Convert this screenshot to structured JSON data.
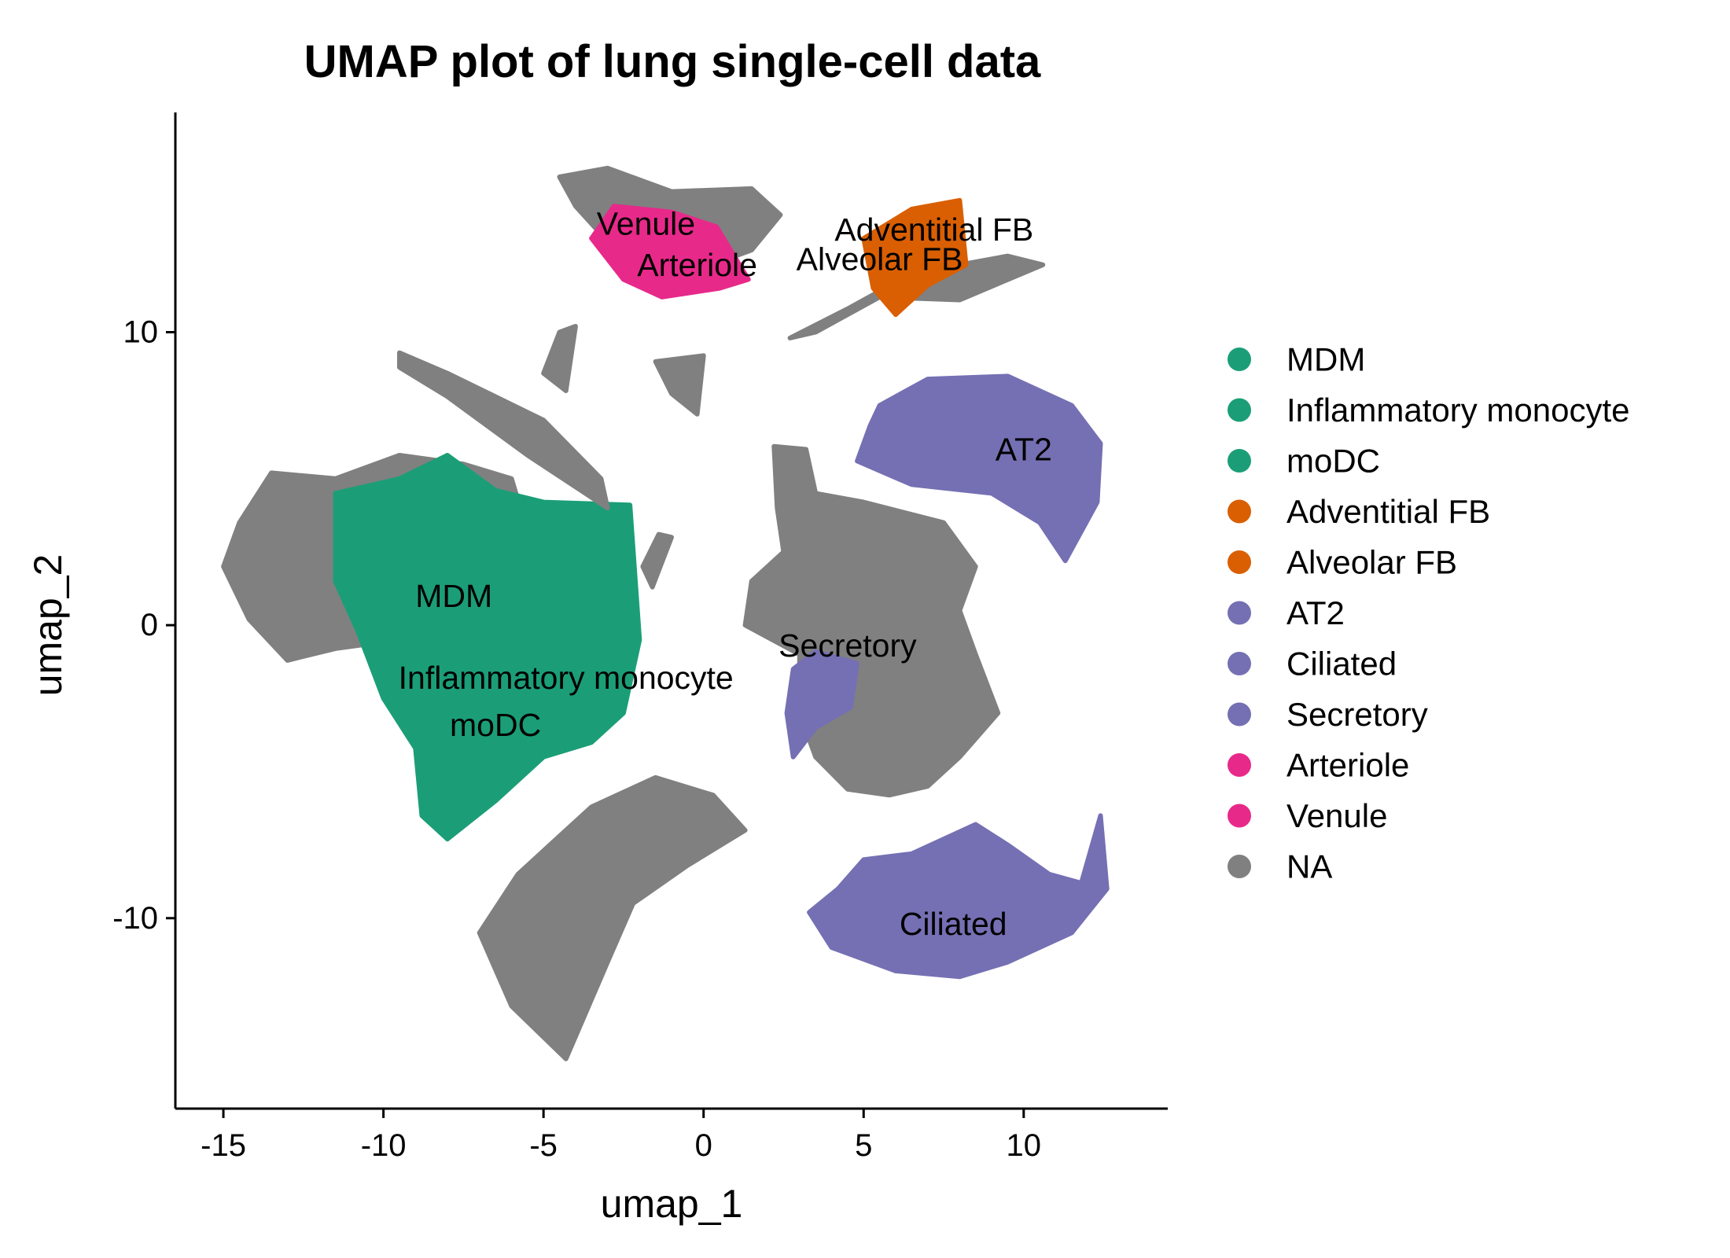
{
  "chart_data": {
    "type": "scatter",
    "title": "UMAP plot of lung single-cell data",
    "xlabel": "umap_1",
    "ylabel": "umap_2",
    "xlim": [
      -16.5,
      14.5
    ],
    "ylim": [
      -16.5,
      17.5
    ],
    "xticks": [
      -15,
      -10,
      -5,
      0,
      5,
      10
    ],
    "xtick_labels": [
      "-15",
      "-10",
      "-5",
      "0",
      "5",
      "10"
    ],
    "yticks": [
      -10,
      0,
      10
    ],
    "ytick_labels": [
      "-10",
      "0",
      "10"
    ],
    "grid": false,
    "legend_position": "right",
    "legend": [
      {
        "label": "MDM",
        "color": "#1B9E77"
      },
      {
        "label": "Inflammatory monocyte",
        "color": "#1B9E77"
      },
      {
        "label": "moDC",
        "color": "#1B9E77"
      },
      {
        "label": "Adventitial FB",
        "color": "#D95F02"
      },
      {
        "label": "Alveolar FB",
        "color": "#D95F02"
      },
      {
        "label": "AT2",
        "color": "#7570B3"
      },
      {
        "label": "Ciliated",
        "color": "#7570B3"
      },
      {
        "label": "Secretory",
        "color": "#7570B3"
      },
      {
        "label": "Arteriole",
        "color": "#E7298A"
      },
      {
        "label": "Venule",
        "color": "#E7298A"
      },
      {
        "label": "NA",
        "color": "#808080"
      }
    ],
    "cluster_labels": [
      {
        "label": "Venule",
        "x": -1.8,
        "y": 13.7
      },
      {
        "label": "Arteriole",
        "x": -0.2,
        "y": 12.3
      },
      {
        "label": "Adventitial FB",
        "x": 7.2,
        "y": 13.5
      },
      {
        "label": "Alveolar FB",
        "x": 5.5,
        "y": 12.5
      },
      {
        "label": "AT2",
        "x": 10.0,
        "y": 6.0
      },
      {
        "label": "MDM",
        "x": -7.8,
        "y": 1.0
      },
      {
        "label": "Secretory",
        "x": 4.5,
        "y": -0.7
      },
      {
        "label": "Inflammatory monocyte",
        "x": -4.3,
        "y": -1.8
      },
      {
        "label": "moDC",
        "x": -6.5,
        "y": -3.4
      },
      {
        "label": "Ciliated",
        "x": 7.8,
        "y": -10.2
      }
    ],
    "regions": [
      {
        "group": "NA",
        "color": "#808080",
        "points": [
          [
            -14.5,
            3.5
          ],
          [
            -13.5,
            5.2
          ],
          [
            -11.5,
            5.0
          ],
          [
            -9.5,
            5.8
          ],
          [
            -7.5,
            5.5
          ],
          [
            -6.0,
            5.0
          ],
          [
            -5.5,
            3.2
          ],
          [
            -7.5,
            1.0
          ],
          [
            -9.5,
            -0.5
          ],
          [
            -11.5,
            -0.8
          ],
          [
            -13.0,
            -1.2
          ],
          [
            -14.2,
            0.2
          ],
          [
            -15.0,
            2.0
          ]
        ]
      },
      {
        "group": "MDM",
        "color": "#1B9E77",
        "points": [
          [
            -11.5,
            4.5
          ],
          [
            -9.5,
            5.0
          ],
          [
            -8.0,
            5.8
          ],
          [
            -6.5,
            4.6
          ],
          [
            -5.0,
            4.2
          ],
          [
            -2.3,
            4.1
          ],
          [
            -2.0,
            -0.5
          ],
          [
            -2.5,
            -3.0
          ],
          [
            -3.5,
            -4.0
          ],
          [
            -5.0,
            -4.5
          ],
          [
            -6.5,
            -6.0
          ],
          [
            -8.0,
            -7.3
          ],
          [
            -8.8,
            -6.5
          ],
          [
            -9.0,
            -4.2
          ],
          [
            -10.0,
            -2.5
          ],
          [
            -10.8,
            -0.2
          ],
          [
            -11.5,
            1.5
          ]
        ]
      },
      {
        "group": "NA",
        "color": "#808080",
        "points": [
          [
            -9.5,
            9.3
          ],
          [
            -8.0,
            8.6
          ],
          [
            -5.0,
            7.0
          ],
          [
            -3.2,
            5.0
          ],
          [
            -3.0,
            4.0
          ],
          [
            -5.5,
            5.8
          ],
          [
            -8.0,
            7.8
          ],
          [
            -9.5,
            8.8
          ]
        ]
      },
      {
        "group": "NA",
        "color": "#808080",
        "points": [
          [
            -4.8,
            -7.5
          ],
          [
            -3.5,
            -6.2
          ],
          [
            -1.5,
            -5.2
          ],
          [
            0.3,
            -5.8
          ],
          [
            1.3,
            -7.0
          ],
          [
            -0.5,
            -8.2
          ],
          [
            -2.2,
            -9.5
          ],
          [
            -3.0,
            -11.5
          ],
          [
            -4.3,
            -14.8
          ],
          [
            -6.0,
            -13.0
          ],
          [
            -7.0,
            -10.5
          ],
          [
            -5.8,
            -8.5
          ]
        ]
      },
      {
        "group": "NA",
        "color": "#808080",
        "points": [
          [
            -4.5,
            10.0
          ],
          [
            -4.0,
            10.2
          ],
          [
            -4.3,
            8.0
          ],
          [
            -5.0,
            8.6
          ]
        ]
      },
      {
        "group": "NA",
        "color": "#808080",
        "points": [
          [
            -1.5,
            9.0
          ],
          [
            0.0,
            9.2
          ],
          [
            -0.2,
            7.2
          ],
          [
            -1.0,
            7.9
          ]
        ]
      },
      {
        "group": "NA",
        "color": "#808080",
        "points": [
          [
            -1.4,
            3.1
          ],
          [
            -1.0,
            3.0
          ],
          [
            -1.6,
            1.3
          ],
          [
            -1.9,
            2.0
          ]
        ]
      },
      {
        "group": "NA",
        "color": "#808080",
        "points": [
          [
            -4.5,
            15.3
          ],
          [
            -3.0,
            15.6
          ],
          [
            -1.0,
            14.8
          ],
          [
            1.5,
            14.9
          ],
          [
            2.4,
            14.0
          ],
          [
            1.5,
            12.8
          ],
          [
            -0.5,
            12.0
          ],
          [
            -2.5,
            12.5
          ],
          [
            -4.0,
            14.3
          ]
        ]
      },
      {
        "group": "Venule",
        "color": "#E7298A",
        "points": [
          [
            -2.8,
            14.3
          ],
          [
            -1.0,
            14.1
          ],
          [
            0.4,
            13.6
          ],
          [
            1.4,
            11.8
          ],
          [
            0.5,
            11.5
          ],
          [
            -1.3,
            11.2
          ],
          [
            -2.5,
            11.8
          ],
          [
            -3.5,
            13.2
          ]
        ]
      },
      {
        "group": "NA",
        "color": "#808080",
        "points": [
          [
            2.7,
            9.8
          ],
          [
            4.5,
            10.8
          ],
          [
            6.5,
            12.0
          ],
          [
            9.5,
            12.6
          ],
          [
            10.6,
            12.3
          ],
          [
            8.0,
            11.1
          ],
          [
            5.5,
            11.2
          ],
          [
            3.5,
            10.0
          ]
        ]
      },
      {
        "group": "Adventitial FB",
        "color": "#D95F02",
        "points": [
          [
            5.0,
            13.2
          ],
          [
            6.5,
            14.2
          ],
          [
            8.0,
            14.5
          ],
          [
            8.2,
            12.3
          ],
          [
            7.0,
            11.6
          ],
          [
            6.0,
            10.6
          ],
          [
            5.3,
            11.5
          ]
        ]
      },
      {
        "group": "AT2",
        "color": "#7570B3",
        "points": [
          [
            5.5,
            7.5
          ],
          [
            7.0,
            8.4
          ],
          [
            9.5,
            8.5
          ],
          [
            11.5,
            7.5
          ],
          [
            12.4,
            6.2
          ],
          [
            12.3,
            4.2
          ],
          [
            11.3,
            2.2
          ],
          [
            10.5,
            3.5
          ],
          [
            9.0,
            4.5
          ],
          [
            6.5,
            4.8
          ],
          [
            4.8,
            5.6
          ],
          [
            5.2,
            6.8
          ]
        ]
      },
      {
        "group": "NA",
        "color": "#808080",
        "points": [
          [
            2.2,
            6.1
          ],
          [
            3.2,
            6.0
          ],
          [
            3.5,
            4.5
          ],
          [
            5.0,
            4.2
          ],
          [
            7.5,
            3.5
          ],
          [
            8.5,
            2.0
          ],
          [
            8.0,
            0.5
          ],
          [
            8.5,
            -1.0
          ],
          [
            9.2,
            -3.0
          ],
          [
            8.0,
            -4.5
          ],
          [
            7.0,
            -5.5
          ],
          [
            5.8,
            -5.8
          ],
          [
            4.5,
            -5.6
          ],
          [
            3.5,
            -4.5
          ],
          [
            3.0,
            -3.0
          ],
          [
            3.0,
            -1.0
          ],
          [
            1.3,
            0.0
          ],
          [
            1.5,
            1.5
          ],
          [
            2.5,
            2.5
          ],
          [
            2.3,
            4.0
          ]
        ]
      },
      {
        "group": "Secretory",
        "color": "#7570B3",
        "points": [
          [
            2.8,
            -1.5
          ],
          [
            3.5,
            -0.9
          ],
          [
            4.8,
            -1.3
          ],
          [
            4.6,
            -2.8
          ],
          [
            3.5,
            -3.5
          ],
          [
            2.8,
            -4.5
          ],
          [
            2.6,
            -3.0
          ]
        ]
      },
      {
        "group": "Ciliated",
        "color": "#7570B3",
        "points": [
          [
            4.2,
            -9.0
          ],
          [
            5.0,
            -8.0
          ],
          [
            6.5,
            -7.8
          ],
          [
            8.5,
            -6.8
          ],
          [
            9.5,
            -7.5
          ],
          [
            10.8,
            -8.5
          ],
          [
            11.8,
            -8.8
          ],
          [
            12.4,
            -6.5
          ],
          [
            12.6,
            -9.0
          ],
          [
            11.5,
            -10.5
          ],
          [
            9.5,
            -11.5
          ],
          [
            8.0,
            -12.0
          ],
          [
            6.0,
            -11.8
          ],
          [
            4.0,
            -11.0
          ],
          [
            3.3,
            -9.8
          ]
        ]
      }
    ]
  }
}
